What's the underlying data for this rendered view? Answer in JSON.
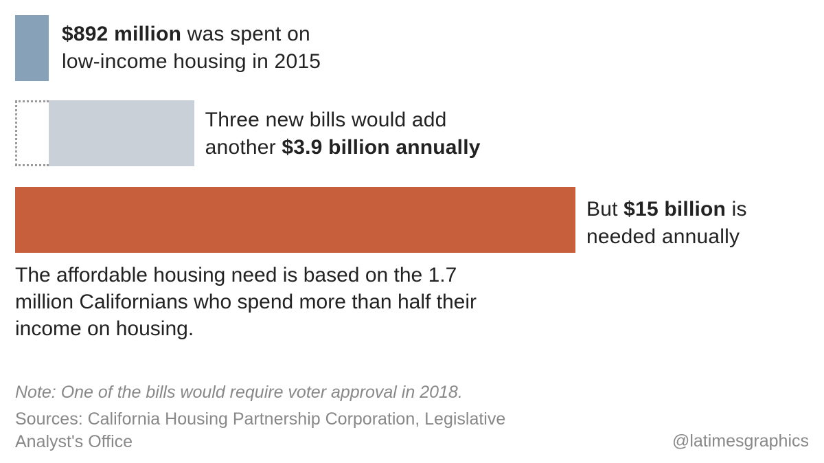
{
  "chart_data": {
    "type": "bar",
    "orientation": "horizontal",
    "unit": "USD billions",
    "scale_max": 15,
    "categories": [
      "Spent on low-income housing in 2015",
      "Added by three new bills",
      "Needed annually"
    ],
    "values": [
      0.892,
      3.9,
      15
    ],
    "stacked_on_previous": [
      false,
      true,
      false
    ],
    "colors": [
      "#87a1b8",
      "#c9d0d8",
      "#c75f3c"
    ],
    "labels": [
      {
        "bold": "$892 million",
        "before": "",
        "after": " was spent on",
        "line2": "low-income housing in 2015"
      },
      {
        "bold": "$3.9 billion annually",
        "before": "another ",
        "after": "",
        "line1": "Three new bills would add"
      },
      {
        "bold": "$15 billion",
        "before": "But ",
        "after": " is",
        "line2": "needed annually"
      }
    ]
  },
  "context_text": "The affordable housing need is based on the 1.7 million Californians who spend more than half their income on housing.",
  "note": "Note: One of the bills would require voter approval in 2018.",
  "sources": "Sources: California Housing Partnership Corporation, Legislative Analyst's Office",
  "credit": "@latimesgraphics"
}
